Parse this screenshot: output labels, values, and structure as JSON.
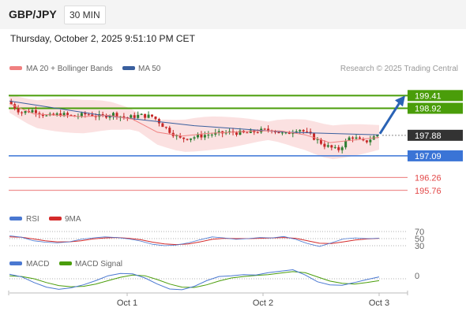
{
  "header": {
    "pair": "GBP/JPY",
    "timeframe": "30 MIN"
  },
  "timestamp": "Thursday, October 2, 2025 9:51:10 PM CET",
  "legend": {
    "ma20": "MA 20 + Bollinger Bands",
    "ma50": "MA 50",
    "credit": "Research © 2025 Trading Central"
  },
  "colors": {
    "bull": "#2e7d32",
    "bear": "#c62828",
    "resistance": "#4a9d0a",
    "current": "#333333",
    "support_primary": "#3a74d6",
    "support_secondary": "#e34848",
    "arrow": "#2a63b5",
    "ma20": "#f08080",
    "ma50": "#3a5f9e",
    "bollinger_fill": "#f7c9c9",
    "rsi": "#4a78d1",
    "rsi_ma": "#d42a2a",
    "macd": "#4a78d1",
    "macd_signal": "#4a9d0a"
  },
  "chart_data": [
    {
      "type": "candlestick",
      "x_ticks": [
        "Oct 1",
        "Oct 2",
        "Oct 3"
      ],
      "ylim": [
        195.0,
        200.2
      ],
      "price_levels": [
        {
          "kind": "resistance",
          "value": 199.41,
          "label": "199.41"
        },
        {
          "kind": "resistance",
          "value": 198.92,
          "label": "198.92"
        },
        {
          "kind": "current",
          "value": 197.88,
          "label": "197.88"
        },
        {
          "kind": "support",
          "value": 197.09,
          "label": "197.09"
        },
        {
          "kind": "support",
          "value": 196.26,
          "label": "196.26"
        },
        {
          "kind": "support",
          "value": 195.76,
          "label": "195.76"
        }
      ],
      "close_path": [
        199.2,
        198.75,
        198.85,
        198.6,
        198.7,
        198.6,
        198.7,
        198.6,
        198.7,
        198.55,
        198.65,
        198.6,
        198.15,
        197.75,
        197.8,
        197.9,
        197.95,
        198.0,
        197.95,
        198.05,
        198.1,
        197.9,
        198.15,
        197.85,
        197.5,
        197.3,
        197.85,
        197.6,
        197.9
      ],
      "ma50": [
        199.2,
        198.65,
        198.25,
        198.0,
        197.9
      ],
      "ma20": [
        199.1,
        198.7,
        198.65,
        198.6,
        198.65,
        198.5,
        198.0,
        197.85,
        197.95,
        198.0,
        198.05,
        198.05,
        197.9,
        197.6,
        197.7,
        197.8
      ],
      "target_arrow": [
        197.88,
        199.35
      ]
    },
    {
      "type": "line",
      "title": "RSI",
      "series": [
        {
          "name": "RSI"
        },
        {
          "name": "9MA"
        }
      ],
      "levels": [
        70,
        50,
        30
      ],
      "ylim": [
        0,
        100
      ],
      "rsi": [
        58,
        54,
        44,
        40,
        38,
        41,
        48,
        52,
        55,
        53,
        49,
        43,
        34,
        30,
        32,
        38,
        47,
        55,
        52,
        48,
        50,
        53,
        52,
        56,
        48,
        36,
        28,
        38,
        49,
        52,
        50,
        51
      ],
      "ma9": [
        55,
        54,
        49,
        44,
        41,
        41,
        44,
        49,
        52,
        53,
        51,
        47,
        40,
        35,
        33,
        35,
        41,
        48,
        51,
        50,
        50,
        51,
        52,
        53,
        51,
        44,
        37,
        36,
        41,
        46,
        49,
        51
      ]
    },
    {
      "type": "line",
      "title": "MACD",
      "series": [
        {
          "name": "MACD"
        },
        {
          "name": "MACD Signal"
        }
      ],
      "levels": [
        0
      ],
      "macd": [
        0.12,
        0.05,
        -0.1,
        -0.22,
        -0.28,
        -0.24,
        -0.16,
        -0.05,
        0.08,
        0.14,
        0.13,
        0.02,
        -0.14,
        -0.27,
        -0.29,
        -0.2,
        -0.05,
        0.06,
        0.08,
        0.11,
        0.1,
        0.16,
        0.2,
        0.24,
        0.1,
        -0.08,
        -0.16,
        -0.17,
        -0.1,
        -0.02,
        0.05
      ],
      "signal": [
        0.08,
        0.06,
        0.0,
        -0.1,
        -0.18,
        -0.21,
        -0.2,
        -0.14,
        -0.05,
        0.04,
        0.1,
        0.08,
        -0.02,
        -0.14,
        -0.22,
        -0.23,
        -0.16,
        -0.06,
        0.02,
        0.06,
        0.09,
        0.11,
        0.15,
        0.19,
        0.16,
        0.05,
        -0.06,
        -0.12,
        -0.14,
        -0.1,
        -0.05
      ]
    }
  ]
}
